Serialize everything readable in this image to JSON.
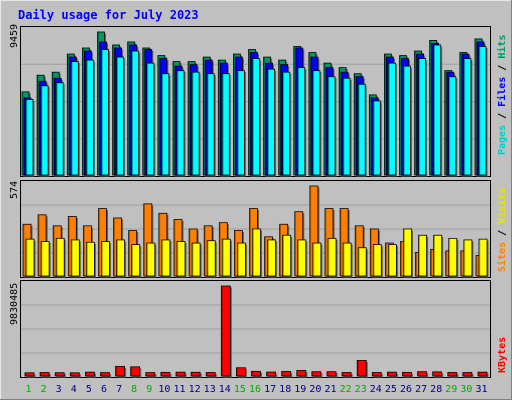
{
  "chart_data": [
    {
      "type": "bar",
      "title": "Daily usage for July 2023",
      "categories": [
        "1",
        "2",
        "3",
        "4",
        "5",
        "6",
        "7",
        "8",
        "9",
        "10",
        "11",
        "12",
        "13",
        "14",
        "15",
        "16",
        "17",
        "18",
        "19",
        "20",
        "21",
        "22",
        "23",
        "24",
        "25",
        "26",
        "27",
        "28",
        "29",
        "30",
        "31"
      ],
      "ylabel_parts": [
        "Pages",
        "Files",
        "Hits"
      ],
      "ylabel_separator": " / ",
      "ymax_label": "9459",
      "ylim": [
        0,
        9459
      ],
      "series": [
        {
          "name": "Hits",
          "values": [
            5500,
            6600,
            6800,
            8000,
            8400,
            9459,
            8600,
            8800,
            8400,
            7900,
            7500,
            7500,
            7800,
            7600,
            8000,
            8300,
            7800,
            7600,
            8500,
            8100,
            7400,
            7100,
            6700,
            5300,
            8000,
            7900,
            8200,
            8900,
            6900,
            8100,
            9000
          ]
        },
        {
          "name": "Files",
          "values": [
            5100,
            6200,
            6400,
            7800,
            8200,
            8800,
            8400,
            8600,
            8300,
            7700,
            7200,
            7300,
            7600,
            7400,
            7800,
            8100,
            7400,
            7300,
            8400,
            7800,
            7100,
            6800,
            6500,
            5100,
            7800,
            7700,
            8000,
            8700,
            6800,
            8000,
            8800
          ]
        },
        {
          "name": "Pages",
          "values": [
            5000,
            5900,
            6100,
            7500,
            7600,
            8300,
            7800,
            8200,
            7400,
            6700,
            6900,
            6800,
            6700,
            6700,
            6900,
            7700,
            7000,
            6800,
            7100,
            6900,
            6500,
            6400,
            6000,
            4900,
            7400,
            7200,
            7700,
            8600,
            6500,
            7700,
            8500
          ]
        }
      ],
      "colors": {
        "Hits": "#009966",
        "Files": "#0000ff",
        "Pages": "#00ffff"
      }
    },
    {
      "type": "bar",
      "categories": [
        "1",
        "2",
        "3",
        "4",
        "5",
        "6",
        "7",
        "8",
        "9",
        "10",
        "11",
        "12",
        "13",
        "14",
        "15",
        "16",
        "17",
        "18",
        "19",
        "20",
        "21",
        "22",
        "23",
        "24",
        "25",
        "26",
        "27",
        "28",
        "29",
        "30",
        "31"
      ],
      "ylabel_parts": [
        "Sites",
        "Visits"
      ],
      "ylabel_separator": " / ",
      "ymax_label": "574",
      "ylim": [
        0,
        574
      ],
      "series": [
        {
          "name": "Visits",
          "values": [
            235,
            220,
            240,
            230,
            215,
            220,
            230,
            200,
            210,
            230,
            220,
            210,
            225,
            235,
            210,
            300,
            230,
            260,
            230,
            210,
            240,
            210,
            180,
            200,
            200,
            300,
            260,
            260,
            240,
            230,
            235
          ]
        },
        {
          "name": "Sites",
          "values": [
            330,
            390,
            320,
            380,
            320,
            430,
            370,
            290,
            460,
            400,
            360,
            300,
            320,
            340,
            290,
            430,
            250,
            330,
            410,
            574,
            430,
            430,
            320,
            300,
            210,
            220,
            150,
            170,
            160,
            160,
            130
          ]
        }
      ],
      "colors": {
        "Visits": "#ffff00",
        "Sites": "#ff8000"
      }
    },
    {
      "type": "bar",
      "categories": [
        "1",
        "2",
        "3",
        "4",
        "5",
        "6",
        "7",
        "8",
        "9",
        "10",
        "11",
        "12",
        "13",
        "14",
        "15",
        "16",
        "17",
        "18",
        "19",
        "20",
        "21",
        "22",
        "23",
        "24",
        "25",
        "26",
        "27",
        "28",
        "29",
        "30",
        "31"
      ],
      "ylabel_parts": [
        "KBytes"
      ],
      "ylabel_separator": "",
      "ymax_label": "9830485",
      "ylim": [
        0,
        9830485
      ],
      "series": [
        {
          "name": "KBytes",
          "values": [
            350000,
            380000,
            360000,
            350000,
            420000,
            370000,
            1050000,
            1000000,
            370000,
            400000,
            420000,
            410000,
            380000,
            9830485,
            900000,
            510000,
            430000,
            490000,
            600000,
            470000,
            470000,
            380000,
            1700000,
            380000,
            420000,
            400000,
            470000,
            450000,
            380000,
            380000,
            420000
          ]
        }
      ],
      "colors": {
        "KBytes": "#ff0000"
      }
    }
  ],
  "colors": {
    "background": "#c0c0c0",
    "title": "#0000ff",
    "weekend_day": "#00aa00",
    "weekday": "#000080"
  },
  "weekend_days": [
    "1",
    "2",
    "8",
    "9",
    "15",
    "16",
    "22",
    "23",
    "29",
    "30"
  ]
}
